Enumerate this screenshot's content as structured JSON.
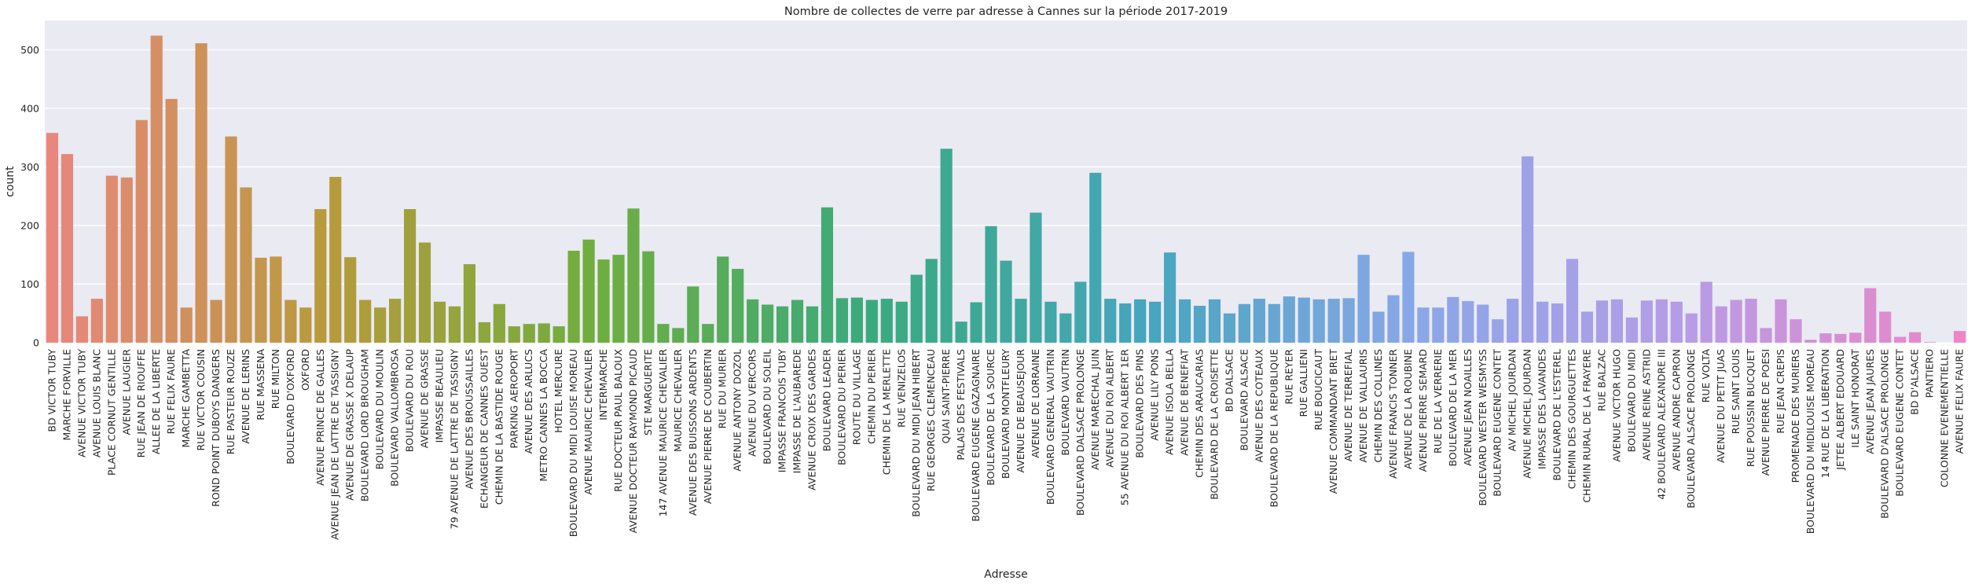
{
  "chart_data": {
    "type": "bar",
    "title": "Nombre de collectes de verre par adresse à Cannes sur la période 2017-2019",
    "xlabel": "Adresse",
    "ylabel": "count",
    "ylim": [
      0,
      550
    ],
    "yticks": [
      0,
      100,
      200,
      300,
      400,
      500
    ],
    "grid": true,
    "categories": [
      "BD VICTOR TUBY",
      "MARCHE FORVILLE",
      "AVENUE VICTOR TUBY",
      "AVENUE LOUIS BLANC",
      "PLACE CORNUT GENTILLE",
      "AVENUE LAUGIER",
      "RUE JEAN DE RIOUFFE",
      "ALLEE DE LA LIBERTE",
      "RUE FELIX FAURE",
      "MARCHE GAMBETTA",
      "RUE VICTOR COUSIN",
      "ROND POINT DUBOYS DANGERS",
      "RUE PASTEUR ROUZE",
      "AVENUE DE LERINS",
      "RUE MASSENA",
      "RUE MILTON",
      "BOULEVARD D'OXFORD",
      "OXFORD",
      "AVENUE PRINCE DE GALLES",
      "AVENUE JEAN DE LATTRE DE TASSIGNY",
      "AVENUE DE GRASSE X DELAUP",
      "BOULEVARD LORD BROUGHAM",
      "BOULEVARD DU MOULIN",
      "BOULEVARD VALLOMBROSA",
      "BOULEVARD DU ROU",
      "AVENUE DE GRASSE",
      "IMPASSE BEAULIEU",
      "79 AVENUE DE LATTRE DE TASSIGNY",
      "AVENUE DES BROUSSAILLES",
      "ECHANGEUR DE CANNES OUEST",
      "CHEMIN DE LA BASTIDE ROUGE",
      "PARKING AEROPORT",
      "AVENUE DES ARLUCS",
      "METRO CANNES LA BOCCA",
      "HOTEL MERCURE",
      "BOULEVARD DU MIDI LOUISE MOREAU",
      "AVENUE MAURICE CHEVALIER",
      "INTERMARCHE",
      "RUE DOCTEUR PAUL BALOUX",
      "AVENUE DOCTEUR RAYMOND PICAUD",
      "STE MARGUERITE",
      "147 AVENUE MAURICE CHEVALIER",
      "MAURICE CHEVALIER",
      "AVENUE DES BUISSONS ARDENTS",
      "AVENUE PIERRE DE COUBERTIN",
      "RUE DU MURIER",
      "AVENUE ANTONY DOZOL",
      "AVENUE DU VERCORS",
      "BOULEVARD DU SOLEIL",
      "IMPASSE FRANCOIS TUBY",
      "IMPASSE DE L'AUBAREDE",
      "AVENUE CROIX DES GARDES",
      "BOULEVARD LEADER",
      "BOULEVARD DU PERIER",
      "ROUTE DU VILLAGE",
      "CHEMIN DU PERIER",
      "CHEMIN DE LA MERLETTE",
      "RUE VENIZELOS",
      "BOULEVARD DU MIDI JEAN HIBERT",
      "RUE GEORGES CLEMENCEAU",
      "QUAI SAINT-PIERRE",
      "PALAIS DES FESTIVALS",
      "BOULEVARD EUGENE GAZAGNAIRE",
      "BOULEVARD DE LA SOURCE",
      "BOULEVARD MONTFLEURY",
      "AVENUE DE BEAUSEJOUR",
      "AVENUE DE LORRAINE",
      "BOULEVARD GENERAL VAUTRIN",
      "BOULEVARD VAUTRIN",
      "BOULEVARD DALSACE PROLONGE",
      "AVENUE MARECHAL JUIN",
      "AVENUE DU ROI ALBERT",
      "55 AVENUE DU ROI ALBERT 1ER",
      "BOULEVARD DES PINS",
      "AVENUE LILY PONS",
      "AVENUE ISOLA BELLA",
      "AVENUE DE BENEFIAT",
      "CHEMIN DES ARAUCARIAS",
      "BOULEVARD DE LA CROISETTE",
      "BD DALSACE",
      "BOULEVARD ALSACE",
      "AVENUE DES COTEAUX",
      "BOULEVARD DE LA REPUBLIQUE",
      "RUE REYER",
      "RUE GALLIENI",
      "RUE BOUCICAUT",
      "AVENUE COMMANDANT BRET",
      "AVENUE DE TERREFIAL",
      "AVENUE DE VALLAURIS",
      "CHEMIN DES COLLINES",
      "AVENUE FRANCIS TONNER",
      "AVENUE DE LA ROUBINE",
      "AVENUE PIERRE SEMARD",
      "RUE DE LA VERRERIE",
      "BOULEVARD DE LA MER",
      "AVENUE JEAN NOAILLES",
      "BOULEVARD WESTER WESMYSS",
      "BOULEVARD EUGENE CONTET",
      "AV MICHEL JOURDAN",
      "AVENUE MICHEL JOURDAN",
      "IMPASSE DES LAVANDES",
      "BOULEVARD DE L'ESTEREL",
      "CHEMIN DES GOURGUETTES",
      "CHEMIN RURAL DE LA FRAYERE",
      "RUE BALZAC",
      "AVENUE VICTOR HUGO",
      "BOULEVARD DU MIDI",
      "AVENUE REINE ASTRID",
      "42 BOULEVARD ALEXANDRE III",
      "AVENUE ANDRE CAPRON",
      "BOULEVARD ALSACE PROLONGE",
      "RUE VOLTA",
      "AVENUE DU PETIT JUAS",
      "RUE SAINT LOUIS",
      "RUE POUSSIN BUCQUET",
      "AVENUE PIERRE DE POESI",
      "RUE JEAN CREPIS",
      "PROMENADE DES MURIERS",
      "BOULEVARD DU MIDILOUISE MOREAU",
      "14 RUE DE LA LIBERATION",
      "JETEE ALBERT EDOUARD",
      "ILE SAINT HONORAT",
      "AVENUE JEAN JAURES",
      "BOULEVARD D'ALSACE PROLONGE",
      "BOULEVARD EUGENE CONTET",
      "BD D'ALSACE",
      "PANTIERO",
      "COLONNE EVENEMENTIELLE",
      "AVENUE FELIX FAURE"
    ],
    "values": [
      358,
      322,
      45,
      75,
      285,
      282,
      380,
      524,
      416,
      60,
      511,
      73,
      352,
      265,
      145,
      147,
      73,
      60,
      228,
      283,
      146,
      73,
      60,
      75,
      228,
      171,
      70,
      62,
      134,
      35,
      66,
      28,
      32,
      33,
      28,
      157,
      176,
      142,
      150,
      229,
      156,
      32,
      25,
      96,
      32,
      147,
      126,
      74,
      65,
      62,
      73,
      62,
      231,
      76,
      77,
      73,
      75,
      70,
      116,
      143,
      331,
      36,
      69,
      199,
      140,
      75,
      222,
      70,
      50,
      104,
      290,
      75,
      67,
      74,
      70,
      154,
      74,
      63,
      74,
      50,
      66,
      75,
      66,
      79,
      77,
      74,
      75,
      76,
      150,
      53,
      81,
      155,
      60,
      60,
      78,
      71,
      65,
      40,
      75,
      318,
      70,
      67,
      143,
      53,
      72,
      74,
      43,
      72,
      74,
      70,
      50,
      104,
      62,
      73,
      75,
      25,
      74,
      40,
      5,
      16,
      15,
      17,
      93,
      53,
      10,
      18,
      1,
      0,
      20
    ],
    "colors": [
      "#e8877c",
      "#b89a3c",
      "#6fae3e",
      "#3aaa7e",
      "#45a6bd",
      "#8aa7e8",
      "#b79ce6",
      "#ec86c8"
    ]
  }
}
